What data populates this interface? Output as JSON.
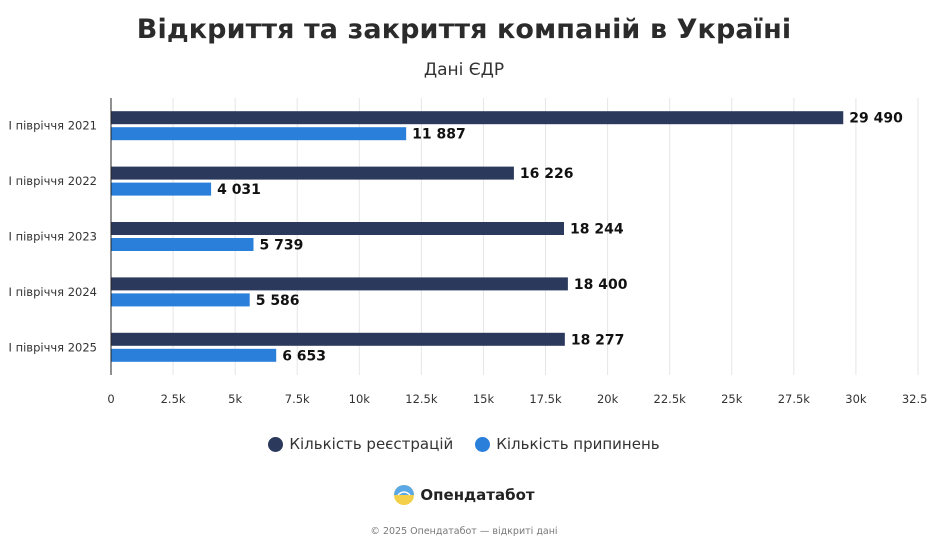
{
  "header": {
    "title": "Відкриття та закриття компаній в Україні",
    "subtitle": "Дані ЄДР"
  },
  "colors": {
    "registrations": "#2b3a5c",
    "terminations": "#2a7fdb",
    "grid": "#e6e6e6",
    "axis": "#222222"
  },
  "chart_data": {
    "type": "bar",
    "orientation": "horizontal",
    "categories": [
      "І півріччя 2021",
      "І півріччя 2022",
      "І півріччя 2023",
      "І півріччя 2024",
      "І півріччя 2025"
    ],
    "series": [
      {
        "name": "Кількість реєстрацій",
        "values": [
          29490,
          16226,
          18244,
          18400,
          18277
        ],
        "labels": [
          "29 490",
          "16 226",
          "18 244",
          "18 400",
          "18 277"
        ]
      },
      {
        "name": "Кількість припинень",
        "values": [
          11887,
          4031,
          5739,
          5586,
          6653
        ],
        "labels": [
          "11 887",
          "4 031",
          "5 739",
          "5 586",
          "6 653"
        ]
      }
    ],
    "xlim": [
      0,
      32500
    ],
    "xticks": [
      0,
      2500,
      5000,
      7500,
      10000,
      12500,
      15000,
      17500,
      20000,
      22500,
      25000,
      27500,
      30000,
      32500
    ],
    "xtick_labels": [
      "0",
      "2.5k",
      "5k",
      "7.5k",
      "10k",
      "12.5k",
      "15k",
      "17.5k",
      "20k",
      "22.5k",
      "25k",
      "27.5k",
      "30k",
      "32.5k"
    ],
    "grid": true,
    "legend_position": "bottom"
  },
  "legend": {
    "items": [
      {
        "label": "Кількість реєстрацій",
        "color": "#2b3a5c"
      },
      {
        "label": "Кількість припинень",
        "color": "#2a7fdb"
      }
    ]
  },
  "brand": {
    "name": "Опендатабот",
    "icon": "opendatabot-logo"
  },
  "footer": {
    "text": "© 2025 Опендатабот — відкриті дані"
  }
}
